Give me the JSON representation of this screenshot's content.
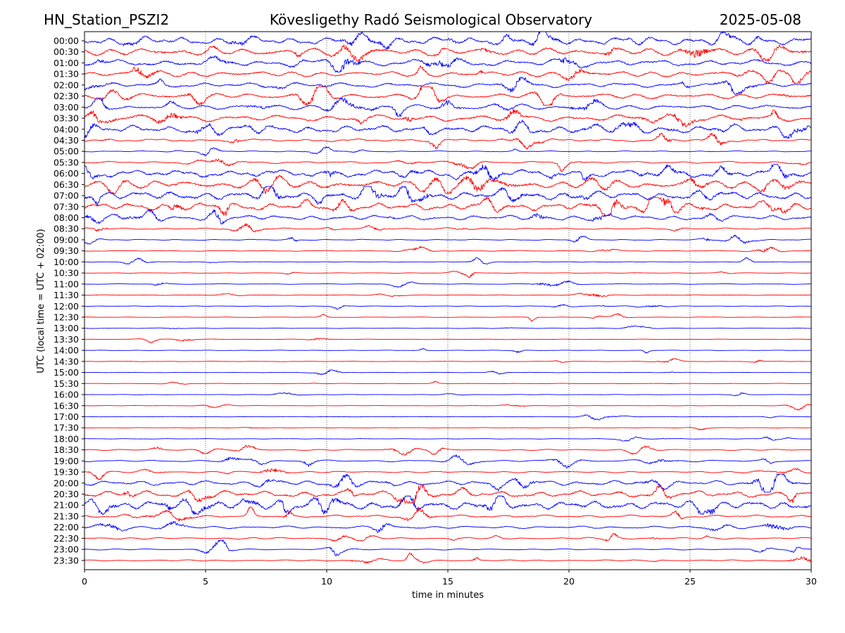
{
  "chart_data": {
    "type": "line",
    "header": {
      "station": "HN_Station_PSZI2",
      "observatory": "Kövesligethy Radó Seismological Observatory",
      "date": "2025-05-08"
    },
    "xlabel": "time in minutes",
    "ylabel": "UTC (local time = UTC + 02:00)",
    "xlim": [
      0,
      30
    ],
    "x_ticks": [
      0,
      5,
      10,
      15,
      20,
      25,
      30
    ],
    "grid_x": true,
    "trace_colors": [
      "#0000ff",
      "#ff0000"
    ],
    "traces": [
      {
        "label": "00:00",
        "activity": 0.95
      },
      {
        "label": "00:30",
        "activity": 0.95
      },
      {
        "label": "01:00",
        "activity": 0.9
      },
      {
        "label": "01:30",
        "activity": 0.85
      },
      {
        "label": "02:00",
        "activity": 0.8
      },
      {
        "label": "02:30",
        "activity": 0.85
      },
      {
        "label": "03:00",
        "activity": 0.8
      },
      {
        "label": "03:30",
        "activity": 0.9
      },
      {
        "label": "04:00",
        "activity": 0.95
      },
      {
        "label": "04:30",
        "activity": 0.6
      },
      {
        "label": "05:00",
        "activity": 0.35
      },
      {
        "label": "05:30",
        "activity": 0.55
      },
      {
        "label": "06:00",
        "activity": 0.95
      },
      {
        "label": "06:30",
        "activity": 1.0
      },
      {
        "label": "07:00",
        "activity": 1.0
      },
      {
        "label": "07:30",
        "activity": 0.95
      },
      {
        "label": "08:00",
        "activity": 0.8
      },
      {
        "label": "08:30",
        "activity": 0.45
      },
      {
        "label": "09:00",
        "activity": 0.35
      },
      {
        "label": "09:30",
        "activity": 0.3
      },
      {
        "label": "10:00",
        "activity": 0.2
      },
      {
        "label": "10:30",
        "activity": 0.2
      },
      {
        "label": "11:00",
        "activity": 0.25
      },
      {
        "label": "11:30",
        "activity": 0.2
      },
      {
        "label": "12:00",
        "activity": 0.2
      },
      {
        "label": "12:30",
        "activity": 0.2
      },
      {
        "label": "13:00",
        "activity": 0.15
      },
      {
        "label": "13:30",
        "activity": 0.15
      },
      {
        "label": "14:00",
        "activity": 0.15
      },
      {
        "label": "14:30",
        "activity": 0.15
      },
      {
        "label": "15:00",
        "activity": 0.1
      },
      {
        "label": "15:30",
        "activity": 0.12
      },
      {
        "label": "16:00",
        "activity": 0.1
      },
      {
        "label": "16:30",
        "activity": 0.08
      },
      {
        "label": "17:00",
        "activity": 0.1
      },
      {
        "label": "17:30",
        "activity": 0.12
      },
      {
        "label": "18:00",
        "activity": 0.2
      },
      {
        "label": "18:30",
        "activity": 0.4
      },
      {
        "label": "19:00",
        "activity": 0.5
      },
      {
        "label": "19:30",
        "activity": 0.45
      },
      {
        "label": "20:00",
        "activity": 0.8
      },
      {
        "label": "20:30",
        "activity": 0.9
      },
      {
        "label": "21:00",
        "activity": 1.0
      },
      {
        "label": "21:30",
        "activity": 0.6
      },
      {
        "label": "22:00",
        "activity": 0.6
      },
      {
        "label": "22:30",
        "activity": 0.5
      },
      {
        "label": "23:00",
        "activity": 0.4
      },
      {
        "label": "23:30",
        "activity": 0.4
      }
    ]
  }
}
